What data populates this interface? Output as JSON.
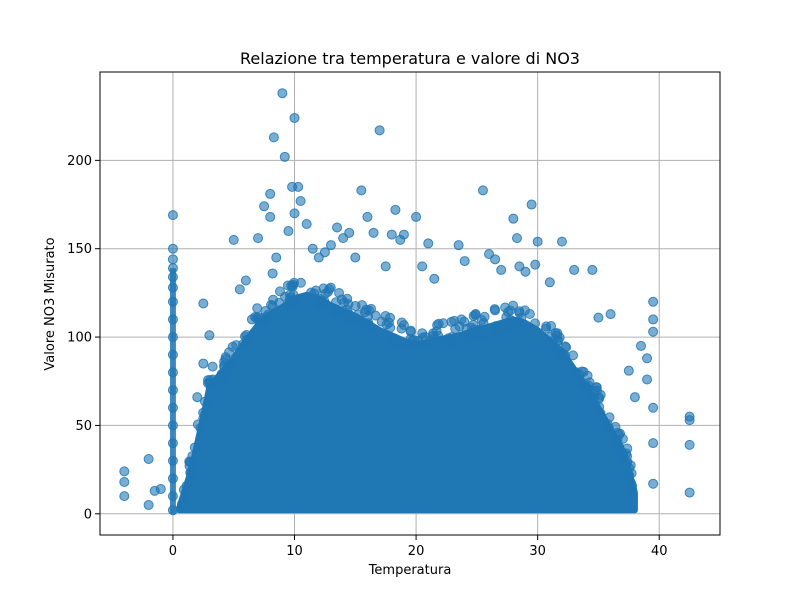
{
  "chart_data": {
    "type": "scatter",
    "title": "Relazione tra temperatura e valore di NO3",
    "xlabel": "Temperatura",
    "ylabel": "Valore NO3 Misurato",
    "xlim": [
      -6,
      45
    ],
    "ylim": [
      -12,
      250
    ],
    "x_ticks": [
      0,
      10,
      20,
      30,
      40
    ],
    "y_ticks": [
      0,
      50,
      100,
      150,
      200
    ],
    "grid": true,
    "marker_color": "#1f77b4",
    "marker_alpha": 0.6,
    "series": [
      {
        "name": "",
        "dense_region_note_x_range": [
          0,
          43
        ],
        "points": [
          [
            -4,
            24
          ],
          [
            -4,
            18
          ],
          [
            -4,
            10
          ],
          [
            -2,
            31
          ],
          [
            -2,
            5
          ],
          [
            -1.5,
            13
          ],
          [
            -1,
            14
          ],
          [
            0,
            169
          ],
          [
            0,
            150
          ],
          [
            0,
            144
          ],
          [
            0,
            139
          ],
          [
            0,
            134
          ],
          [
            0,
            128
          ],
          [
            0,
            120
          ],
          [
            0,
            110
          ],
          [
            0,
            100
          ],
          [
            0,
            90
          ],
          [
            0,
            80
          ],
          [
            0,
            70
          ],
          [
            0,
            60
          ],
          [
            0,
            50
          ],
          [
            0,
            40
          ],
          [
            0,
            30
          ],
          [
            0,
            20
          ],
          [
            0,
            10
          ],
          [
            0,
            2
          ],
          [
            2.5,
            119
          ],
          [
            3,
            101
          ],
          [
            2.5,
            85
          ],
          [
            3,
            74
          ],
          [
            2,
            66
          ],
          [
            2.5,
            54
          ],
          [
            5,
            155
          ],
          [
            6,
            132
          ],
          [
            5.5,
            127
          ],
          [
            6.5,
            110
          ],
          [
            7,
            156
          ],
          [
            7.5,
            174
          ],
          [
            8,
            181
          ],
          [
            8,
            168
          ],
          [
            8.2,
            136
          ],
          [
            8.5,
            145
          ],
          [
            8.3,
            213
          ],
          [
            9,
            238
          ],
          [
            9.2,
            202
          ],
          [
            9.5,
            160
          ],
          [
            9.8,
            185
          ],
          [
            10,
            224
          ],
          [
            10.3,
            185
          ],
          [
            10.5,
            177
          ],
          [
            10,
            170
          ],
          [
            11,
            164
          ],
          [
            11.5,
            150
          ],
          [
            12,
            145
          ],
          [
            12.5,
            148
          ],
          [
            13,
            152
          ],
          [
            13.5,
            162
          ],
          [
            14,
            156
          ],
          [
            14.5,
            159
          ],
          [
            15,
            145
          ],
          [
            15.5,
            183
          ],
          [
            16,
            168
          ],
          [
            16.5,
            159
          ],
          [
            17,
            217
          ],
          [
            17.5,
            140
          ],
          [
            18,
            158
          ],
          [
            18.3,
            172
          ],
          [
            18.7,
            155
          ],
          [
            19,
            158
          ],
          [
            20,
            168
          ],
          [
            20.5,
            140
          ],
          [
            21,
            153
          ],
          [
            21.5,
            133
          ],
          [
            23.5,
            152
          ],
          [
            24,
            143
          ],
          [
            25.5,
            183
          ],
          [
            26,
            147
          ],
          [
            26.5,
            144
          ],
          [
            27,
            138
          ],
          [
            28,
            167
          ],
          [
            28.3,
            156
          ],
          [
            28.5,
            140
          ],
          [
            29,
            137
          ],
          [
            29.5,
            175
          ],
          [
            29.8,
            141
          ],
          [
            30,
            154
          ],
          [
            31,
            131
          ],
          [
            32,
            154
          ],
          [
            33,
            138
          ],
          [
            34.5,
            138
          ],
          [
            35,
            111
          ],
          [
            36,
            113
          ],
          [
            37.5,
            81
          ],
          [
            38,
            66
          ],
          [
            38.5,
            95
          ],
          [
            39,
            88
          ],
          [
            39.5,
            120
          ],
          [
            39.5,
            110
          ],
          [
            39.5,
            103
          ],
          [
            39,
            76
          ],
          [
            39.5,
            60
          ],
          [
            39.5,
            40
          ],
          [
            39.5,
            17
          ],
          [
            42.5,
            55
          ],
          [
            42.5,
            53
          ],
          [
            42.5,
            39
          ],
          [
            42.5,
            12
          ]
        ]
      }
    ]
  }
}
